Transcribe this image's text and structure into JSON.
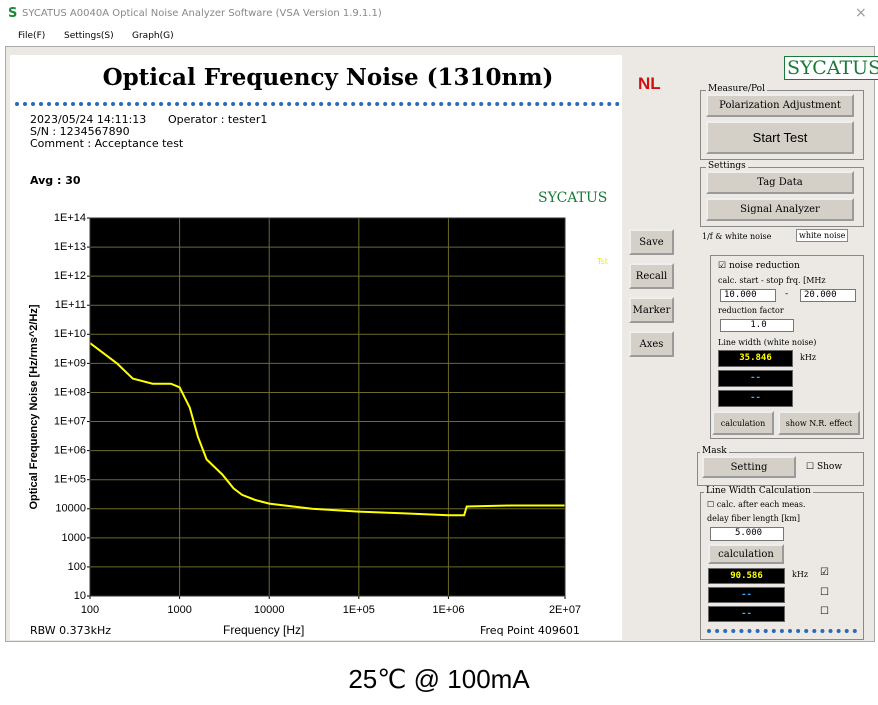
{
  "window": {
    "title": "SYCATUS A0040A Optical Noise Analyzer Software (VSA Version 1.9.1.1)",
    "close": "×",
    "menu": [
      "File(F)",
      "Settings(S)",
      "Graph(G)"
    ]
  },
  "info": {
    "mode": "NL",
    "datetime": "2023/05/24 14:11:13",
    "operator": "Operator : tester1",
    "serial": "S/N : 1234567890",
    "comment": "Comment : Acceptance test",
    "avg": "Avg : 30",
    "watermark": "SYCATUS",
    "rbw": "RBW 0.373kHz",
    "freq_points": "Freq Point 409601",
    "trace_tag": "Tst"
  },
  "side_buttons": [
    "Save",
    "Recall",
    "Marker",
    "Axes"
  ],
  "panel": {
    "logo": "SYCATUS",
    "measure_group": "Measure/Pol",
    "polarization": "Polarization Adjustment",
    "start": "Start Test",
    "settings_group": "Settings",
    "tag_data": "Tag Data",
    "signal_analyzer": "Signal Analyzer",
    "tabs": [
      "1/f & white noise",
      "white noise"
    ],
    "noise_reduction": "noise reduction",
    "calc_range": "calc. start - stop frq. [MHz",
    "start_frq": "10.000",
    "dash": "-",
    "stop_frq": "20.000",
    "reduction_label": "reduction factor",
    "reduction": "1.0",
    "lw_label": "Line width (white noise)",
    "lw_value": "35.846",
    "lw_unit": "kHz",
    "lw_2": "--",
    "lw_3": "--",
    "calc_btn": "calculation",
    "show_nr": "show N.R. effect",
    "mask_group": "Mask",
    "mask_setting": "Setting",
    "mask_show": "Show",
    "lwc_group": "Line Width Calculation",
    "calc_after": "calc. after each meas.",
    "delay_label": "delay fiber length [km]",
    "delay": "5.000",
    "calc_btn2": "calculation",
    "res1": "90.586",
    "res1_unit": "kHz",
    "res2": "--",
    "res3": "--"
  },
  "caption": "25℃ @ 100mA",
  "chart_data": {
    "type": "line",
    "title": "Optical Frequency Noise (1310nm)",
    "xlabel": "Frequency [Hz]",
    "ylabel": "Optical Frequency Noise [Hz/rms^2/Hz]",
    "x": [
      100,
      200,
      300,
      500,
      800,
      1000,
      1300,
      1600,
      2000,
      3000,
      4000,
      5000,
      7000,
      10000,
      30000,
      100000,
      300000,
      1000000,
      1500000,
      1600000,
      5000000,
      20000000
    ],
    "values": [
      5000000000,
      1000000000,
      300000000,
      200000000,
      200000000,
      150000000,
      30000000,
      3000000,
      500000,
      150000,
      50000,
      30000,
      20000,
      15000,
      10000,
      8000,
      7000,
      6000,
      6000,
      12000,
      13000,
      13000
    ],
    "color": "#ffff00",
    "log_x": true,
    "log_y": true,
    "grid": true,
    "xlim": [
      100,
      20000000
    ],
    "ylim": [
      10,
      100000000000000
    ],
    "xticks": [
      100,
      1000,
      10000,
      {
        "value": 100000,
        "label": "1E+05"
      },
      {
        "value": 1000000,
        "label": "1E+06"
      },
      {
        "value": 20000000,
        "label": "2E+07"
      }
    ],
    "yticks": [
      {
        "value": 100000000000000,
        "label": "1E+14"
      },
      {
        "value": 10000000000000,
        "label": "1E+13"
      },
      {
        "value": 1000000000000,
        "label": "1E+12"
      },
      {
        "value": 100000000000,
        "label": "1E+11"
      },
      {
        "value": 10000000000,
        "label": "1E+10"
      },
      {
        "value": 1000000000,
        "label": "1E+09"
      },
      {
        "value": 100000000,
        "label": "1E+08"
      },
      {
        "value": 10000000,
        "label": "1E+07"
      },
      {
        "value": 1000000,
        "label": "1E+06"
      },
      {
        "value": 100000,
        "label": "1E+05"
      },
      10000,
      1000,
      100,
      10
    ]
  }
}
